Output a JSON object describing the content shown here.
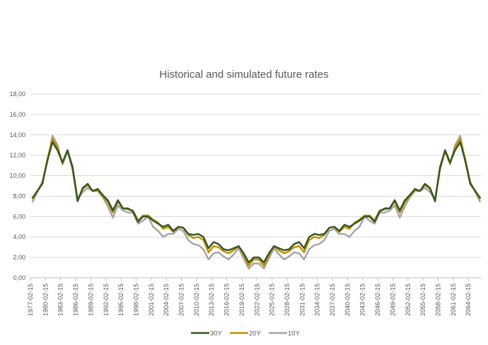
{
  "chart_data": {
    "type": "line",
    "title": "Historical and simulated future rates",
    "xlabel": "",
    "ylabel": "",
    "ylim": [
      0,
      18
    ],
    "yticks": [
      "0,00",
      "2,00",
      "4,00",
      "6,00",
      "8,00",
      "10,00",
      "12,00",
      "14,00",
      "16,00",
      "18,00"
    ],
    "xticks": [
      "1977-02-15",
      "1980-02-15",
      "1983-02-15",
      "1986-02-15",
      "1989-02-15",
      "1992-02-15",
      "1995-02-15",
      "1998-02-15",
      "2001-02-15",
      "2004-02-15",
      "2007-02-15",
      "2010-02-15",
      "2013-02-15",
      "2016-02-15",
      "2019-02-15",
      "2022-02-15",
      "2025-02-15",
      "2028-02-15",
      "2031-02-15",
      "2034-02-15",
      "2037-02-15",
      "2040-02-15",
      "2043-02-15",
      "2046-02-15",
      "2049-02-15",
      "2052-02-15",
      "2055-02-15",
      "2058-02-15",
      "2061-02-15",
      "2064-02-15"
    ],
    "xlim": [
      "1977-02-15",
      "2066-08-15"
    ],
    "grid": true,
    "legend_position": "bottom",
    "x": [
      1977,
      1978,
      1979,
      1980,
      1981,
      1982,
      1983,
      1984,
      1985,
      1986,
      1987,
      1988,
      1989,
      1990,
      1991,
      1992,
      1993,
      1994,
      1995,
      1996,
      1997,
      1998,
      1999,
      2000,
      2001,
      2002,
      2003,
      2004,
      2005,
      2006,
      2007,
      2008,
      2009,
      2010,
      2011,
      2012,
      2013,
      2014,
      2015,
      2016,
      2017,
      2018,
      2019,
      2020,
      2021,
      2022,
      2023,
      2024,
      2025,
      2026,
      2027,
      2028,
      2029,
      2030,
      2031,
      2032,
      2033,
      2034,
      2035,
      2036,
      2037,
      2038,
      2039,
      2040,
      2041,
      2042,
      2043,
      2044,
      2045,
      2046,
      2047,
      2048,
      2049,
      2050,
      2051,
      2052,
      2053,
      2054,
      2055,
      2056,
      2057,
      2058,
      2059,
      2060,
      2061,
      2062,
      2063,
      2064,
      2065,
      2066
    ],
    "series": [
      {
        "name": "30Y",
        "color": "#375623",
        "values": [
          7.8,
          8.5,
          9.2,
          11.5,
          13.3,
          12.5,
          11.3,
          12.5,
          10.8,
          7.5,
          8.8,
          9.2,
          8.5,
          8.7,
          8.1,
          7.6,
          6.6,
          7.6,
          6.8,
          6.8,
          6.5,
          5.5,
          6.0,
          6.0,
          5.6,
          5.3,
          5.0,
          5.2,
          4.6,
          5.0,
          4.9,
          4.3,
          4.2,
          4.3,
          4.0,
          2.9,
          3.5,
          3.3,
          2.8,
          2.7,
          2.9,
          3.1,
          2.4,
          1.5,
          2.0,
          2.0,
          1.5,
          2.4,
          3.1,
          2.9,
          2.7,
          2.8,
          3.3,
          3.5,
          2.9,
          4.0,
          4.3,
          4.2,
          4.3,
          4.9,
          5.0,
          4.6,
          5.2,
          5.0,
          5.3,
          5.6,
          6.0,
          6.0,
          5.5,
          6.5,
          6.8,
          6.8,
          7.6,
          6.6,
          7.6,
          8.1,
          8.7,
          8.5,
          9.2,
          8.8,
          7.5,
          10.8,
          12.5,
          11.3,
          12.5,
          13.3,
          11.5,
          9.2,
          8.5,
          7.8
        ]
      },
      {
        "name": "20Y",
        "color": "#bf9000",
        "values": [
          7.7,
          8.5,
          9.3,
          11.6,
          13.6,
          12.8,
          11.2,
          12.4,
          10.9,
          7.6,
          8.7,
          9.1,
          8.5,
          8.6,
          8.0,
          7.4,
          6.4,
          7.5,
          6.8,
          6.7,
          6.6,
          5.6,
          6.1,
          6.1,
          5.7,
          5.4,
          4.8,
          5.0,
          4.5,
          5.0,
          4.9,
          4.2,
          3.9,
          4.0,
          3.7,
          2.5,
          3.1,
          3.0,
          2.6,
          2.4,
          2.7,
          3.1,
          2.2,
          1.2,
          1.8,
          1.8,
          1.2,
          2.2,
          3.1,
          2.7,
          2.4,
          2.6,
          3.0,
          3.1,
          2.5,
          3.7,
          4.0,
          3.9,
          4.2,
          4.9,
          5.0,
          4.5,
          5.0,
          4.8,
          5.4,
          5.7,
          6.1,
          6.1,
          5.6,
          6.6,
          6.7,
          6.8,
          7.5,
          6.4,
          7.4,
          8.0,
          8.6,
          8.5,
          9.1,
          8.7,
          7.6,
          10.9,
          12.4,
          11.2,
          12.8,
          13.6,
          11.6,
          9.3,
          8.5,
          7.7
        ]
      },
      {
        "name": "10Y",
        "color": "#a5a5a5",
        "values": [
          7.4,
          8.4,
          9.4,
          11.4,
          13.9,
          13.0,
          11.1,
          12.4,
          10.6,
          7.7,
          8.4,
          8.8,
          8.5,
          8.5,
          7.9,
          7.0,
          5.9,
          7.1,
          6.6,
          6.4,
          6.4,
          5.3,
          5.6,
          6.0,
          5.0,
          4.6,
          4.0,
          4.3,
          4.3,
          4.8,
          4.6,
          3.7,
          3.3,
          3.2,
          2.8,
          1.8,
          2.4,
          2.5,
          2.1,
          1.8,
          2.3,
          2.9,
          1.9,
          0.9,
          1.4,
          1.4,
          0.9,
          1.9,
          2.9,
          2.3,
          1.8,
          2.1,
          2.5,
          2.4,
          1.8,
          2.8,
          3.2,
          3.3,
          3.7,
          4.6,
          4.8,
          4.3,
          4.3,
          4.0,
          4.6,
          5.0,
          6.0,
          5.6,
          5.3,
          6.4,
          6.4,
          6.6,
          7.1,
          5.9,
          7.0,
          7.9,
          8.5,
          8.5,
          8.8,
          8.4,
          7.7,
          10.6,
          12.4,
          11.1,
          13.0,
          13.9,
          11.4,
          9.4,
          8.4,
          7.4
        ]
      }
    ]
  }
}
